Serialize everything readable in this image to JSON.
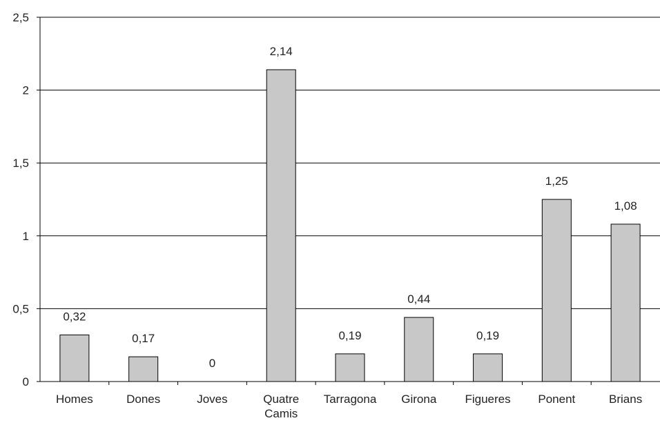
{
  "chart_data": {
    "type": "bar",
    "title": "",
    "xlabel": "",
    "ylabel": "",
    "categories": [
      [
        "Homes"
      ],
      [
        "Dones"
      ],
      [
        "Joves"
      ],
      [
        "Quatre",
        "Camis"
      ],
      [
        "Tarragona"
      ],
      [
        "Girona"
      ],
      [
        "Figueres"
      ],
      [
        "Ponent"
      ],
      [
        "Brians"
      ]
    ],
    "values": [
      0.32,
      0.17,
      0,
      2.14,
      0.19,
      0.44,
      0.19,
      1.25,
      1.08
    ],
    "value_labels": [
      "0,32",
      "0,17",
      "0",
      "2,14",
      "0,19",
      "0,44",
      "0,19",
      "1,25",
      "1,08"
    ],
    "ylim": [
      0,
      2.5
    ],
    "yticks": [
      0,
      0.5,
      1,
      1.5,
      2,
      2.5
    ],
    "ytick_labels": [
      "0",
      "0,5",
      "1",
      "1,5",
      "2",
      "2,5"
    ],
    "grid": true,
    "legend": "none",
    "colors": {
      "bar_fill": "#c8c8c8",
      "bar_stroke": "#000000",
      "grid": "#000000",
      "axis": "#000000",
      "text": "#222222"
    }
  }
}
